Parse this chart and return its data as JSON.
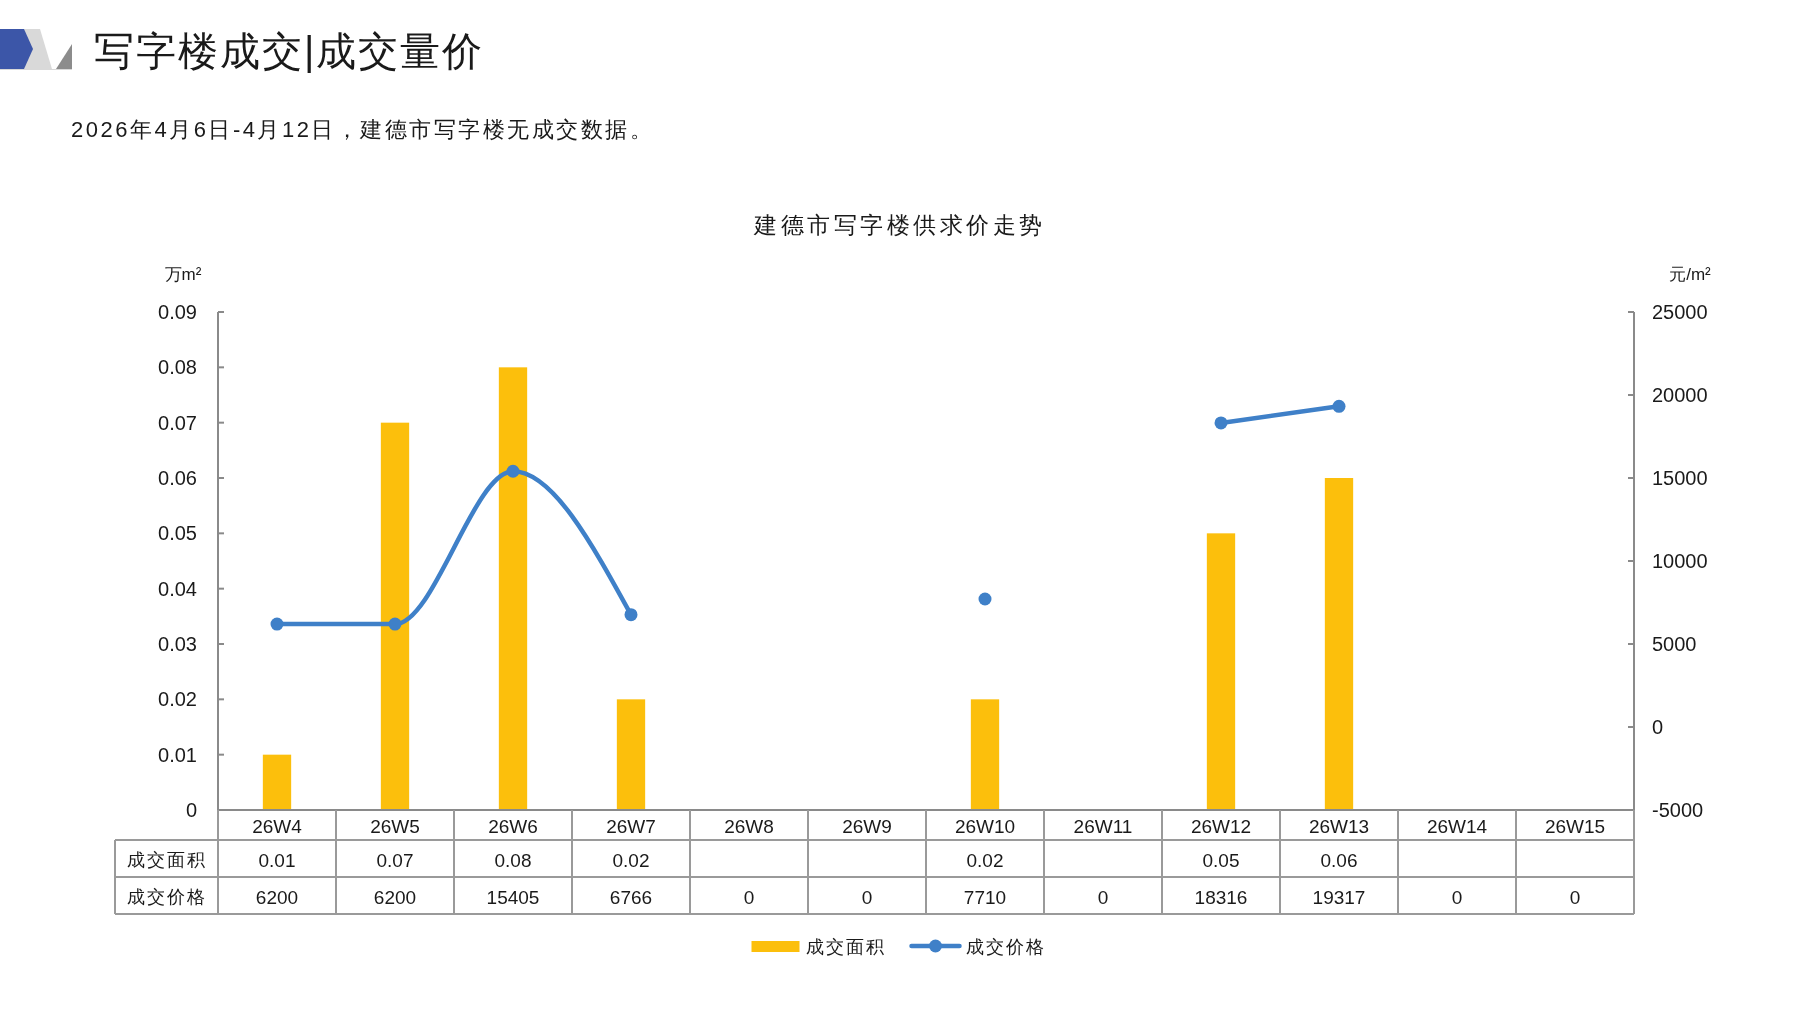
{
  "chart_data": {
    "type": "bar",
    "title": "建德市写字楼供求价走势",
    "subtitle": "2026年4月6日-4月12日，建德市写字楼无成交数据。",
    "annotations": [
      "写字楼成交|成交量价"
    ],
    "ylabel": "万m²",
    "y2label": "元/m²",
    "categories": [
      "26W4",
      "26W5",
      "26W6",
      "26W7",
      "26W8",
      "26W9",
      "26W10",
      "26W11",
      "26W12",
      "26W13",
      "26W14",
      "26W15"
    ],
    "series": [
      {
        "name": "成交面积",
        "color": "#fcbf0c",
        "values": [
          0.01,
          0.07,
          0.08,
          0.02,
          null,
          null,
          0.02,
          null,
          0.05,
          0.06,
          null,
          null
        ],
        "value_labels": [
          "0.01",
          "0.07",
          "0.08",
          "0.02",
          null,
          null,
          "0.02",
          null,
          "0.05",
          "0.06",
          null,
          null
        ]
      },
      {
        "name": "成交价格",
        "type": "line",
        "axis": "y2",
        "color": "#3f80c8",
        "values": [
          6200,
          6200,
          15405,
          6766,
          null,
          null,
          7710,
          null,
          18316,
          19317,
          null,
          null
        ],
        "value_labels": [
          "6200",
          "6200",
          "15405",
          "6766",
          "0",
          "0",
          "7710",
          "0",
          "18316",
          "19317",
          "0",
          "0"
        ]
      }
    ],
    "ylim": [
      0,
      0.09
    ],
    "yticks": [
      0,
      0.01,
      0.02,
      0.03,
      0.04,
      0.05,
      0.06,
      0.07,
      0.08,
      0.09
    ],
    "y2lim": [
      -5000,
      25000
    ],
    "y2ticks": [
      -5000,
      0,
      5000,
      10000,
      15000,
      20000,
      25000
    ],
    "marker": "circle",
    "legend": "bottom"
  }
}
